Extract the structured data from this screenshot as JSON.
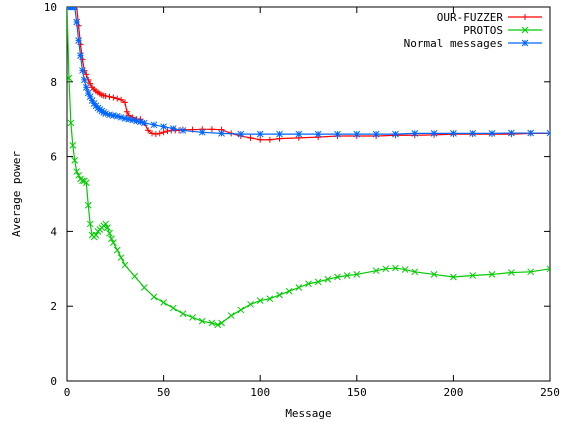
{
  "chart_data": {
    "type": "line",
    "title": "",
    "xlabel": "Message",
    "ylabel": "Average power",
    "xlim": [
      0,
      250
    ],
    "ylim": [
      0,
      10
    ],
    "x_ticks": [
      0,
      50,
      100,
      150,
      200,
      250
    ],
    "y_ticks": [
      0,
      2,
      4,
      6,
      8,
      10
    ],
    "grid": false,
    "legend_position": "top-right",
    "series": [
      {
        "name": "OUR-FUZZER",
        "color": "#ff0000",
        "marker": "plus",
        "x": [
          1,
          2,
          3,
          4,
          5,
          6,
          7,
          8,
          9,
          10,
          11,
          12,
          13,
          14,
          15,
          16,
          17,
          18,
          19,
          20,
          22,
          24,
          26,
          28,
          30,
          31,
          32,
          34,
          36,
          38,
          40,
          42,
          44,
          46,
          48,
          50,
          52,
          54,
          56,
          58,
          60,
          65,
          70,
          75,
          80,
          85,
          90,
          95,
          100,
          105,
          110,
          120,
          130,
          140,
          150,
          160,
          170,
          180,
          190,
          200,
          210,
          220,
          230,
          240,
          250
        ],
        "y": [
          10,
          10,
          10,
          10,
          10,
          9.5,
          9.0,
          8.6,
          8.3,
          8.2,
          8.05,
          7.95,
          7.85,
          7.8,
          7.75,
          7.72,
          7.68,
          7.65,
          7.63,
          7.62,
          7.6,
          7.58,
          7.55,
          7.52,
          7.45,
          7.2,
          7.1,
          7.05,
          7.0,
          7.0,
          6.9,
          6.7,
          6.62,
          6.6,
          6.62,
          6.65,
          6.68,
          6.7,
          6.7,
          6.7,
          6.72,
          6.72,
          6.73,
          6.73,
          6.72,
          6.62,
          6.55,
          6.5,
          6.45,
          6.45,
          6.48,
          6.5,
          6.52,
          6.55,
          6.55,
          6.55,
          6.57,
          6.57,
          6.58,
          6.6,
          6.6,
          6.6,
          6.6,
          6.62,
          6.62
        ]
      },
      {
        "name": "PROTOS",
        "color": "#00cc00",
        "marker": "cross",
        "x": [
          0,
          1,
          2,
          3,
          4,
          5,
          6,
          7,
          8,
          9,
          10,
          11,
          12,
          13,
          14,
          15,
          16,
          17,
          18,
          19,
          20,
          21,
          22,
          23,
          24,
          26,
          28,
          30,
          35,
          40,
          45,
          50,
          55,
          60,
          65,
          70,
          75,
          78,
          80,
          85,
          90,
          95,
          100,
          105,
          110,
          115,
          120,
          125,
          130,
          135,
          140,
          145,
          150,
          160,
          165,
          170,
          175,
          180,
          190,
          200,
          210,
          220,
          230,
          240,
          250
        ],
        "y": [
          10,
          8.1,
          6.9,
          6.3,
          5.9,
          5.6,
          5.5,
          5.4,
          5.35,
          5.35,
          5.3,
          4.7,
          4.2,
          3.9,
          3.85,
          3.9,
          4.0,
          4.05,
          4.1,
          4.15,
          4.2,
          4.1,
          3.95,
          3.8,
          3.7,
          3.5,
          3.3,
          3.1,
          2.8,
          2.5,
          2.25,
          2.1,
          1.95,
          1.8,
          1.7,
          1.6,
          1.55,
          1.5,
          1.55,
          1.75,
          1.9,
          2.05,
          2.15,
          2.2,
          2.3,
          2.4,
          2.5,
          2.6,
          2.65,
          2.72,
          2.78,
          2.82,
          2.85,
          2.95,
          3.0,
          3.02,
          2.98,
          2.92,
          2.85,
          2.78,
          2.82,
          2.85,
          2.9,
          2.92,
          3.0
        ]
      },
      {
        "name": "Normal messages",
        "color": "#0066ff",
        "marker": "star",
        "x": [
          1,
          2,
          3,
          4,
          5,
          6,
          7,
          8,
          9,
          10,
          11,
          12,
          13,
          14,
          15,
          16,
          17,
          18,
          19,
          20,
          22,
          24,
          26,
          28,
          30,
          32,
          34,
          36,
          38,
          40,
          45,
          50,
          55,
          60,
          70,
          80,
          90,
          100,
          110,
          120,
          130,
          140,
          150,
          160,
          170,
          180,
          190,
          200,
          210,
          220,
          230,
          240,
          250
        ],
        "y": [
          10,
          10,
          10,
          10,
          9.6,
          9.1,
          8.7,
          8.3,
          8.05,
          7.85,
          7.7,
          7.6,
          7.5,
          7.42,
          7.36,
          7.3,
          7.26,
          7.22,
          7.18,
          7.15,
          7.12,
          7.1,
          7.08,
          7.05,
          7.02,
          7.0,
          6.98,
          6.95,
          6.93,
          6.9,
          6.85,
          6.8,
          6.75,
          6.7,
          6.65,
          6.62,
          6.6,
          6.6,
          6.6,
          6.6,
          6.6,
          6.6,
          6.6,
          6.6,
          6.6,
          6.62,
          6.62,
          6.62,
          6.62,
          6.62,
          6.63,
          6.63,
          6.63
        ]
      }
    ]
  }
}
